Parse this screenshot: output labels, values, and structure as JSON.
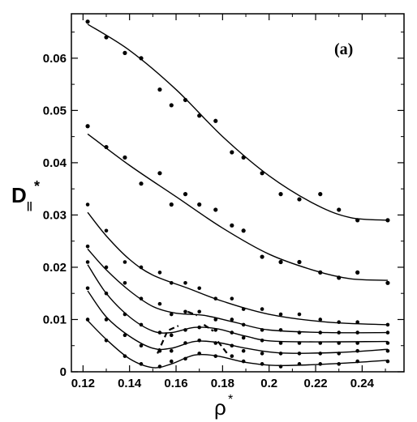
{
  "chart_data": {
    "type": "line",
    "panel_label": "(a)",
    "x_axis": {
      "label": "ρ",
      "superscript": "*",
      "lim": [
        0.115,
        0.258
      ],
      "ticks": [
        "0.12",
        "0.14",
        "0.16",
        "0.18",
        "0.2",
        "0.22",
        "0.24"
      ]
    },
    "y_axis": {
      "label": "D",
      "subscript": "||",
      "superscript": "*",
      "lim": [
        0,
        0.0685
      ],
      "ticks": [
        "0",
        "0.01",
        "0.02",
        "0.03",
        "0.04",
        "0.05",
        "0.06"
      ]
    },
    "grid": false,
    "legend": "none",
    "series": [
      {
        "points": [
          [
            0.122,
            0.067
          ],
          [
            0.13,
            0.064
          ],
          [
            0.138,
            0.061
          ],
          [
            0.145,
            0.06
          ],
          [
            0.153,
            0.054
          ],
          [
            0.158,
            0.051
          ],
          [
            0.164,
            0.052
          ],
          [
            0.17,
            0.049
          ],
          [
            0.177,
            0.048
          ],
          [
            0.184,
            0.042
          ],
          [
            0.189,
            0.041
          ],
          [
            0.197,
            0.038
          ],
          [
            0.205,
            0.034
          ],
          [
            0.213,
            0.033
          ],
          [
            0.222,
            0.034
          ],
          [
            0.23,
            0.031
          ],
          [
            0.238,
            0.029
          ],
          [
            0.251,
            0.029
          ]
        ],
        "curve": [
          [
            0.122,
            0.0665
          ],
          [
            0.14,
            0.0615
          ],
          [
            0.16,
            0.054
          ],
          [
            0.18,
            0.045
          ],
          [
            0.2,
            0.0375
          ],
          [
            0.22,
            0.032
          ],
          [
            0.235,
            0.0295
          ],
          [
            0.251,
            0.029
          ]
        ]
      },
      {
        "points": [
          [
            0.122,
            0.047
          ],
          [
            0.13,
            0.043
          ],
          [
            0.138,
            0.041
          ],
          [
            0.145,
            0.036
          ],
          [
            0.153,
            0.038
          ],
          [
            0.158,
            0.032
          ],
          [
            0.164,
            0.034
          ],
          [
            0.17,
            0.032
          ],
          [
            0.177,
            0.031
          ],
          [
            0.184,
            0.028
          ],
          [
            0.189,
            0.027
          ],
          [
            0.197,
            0.022
          ],
          [
            0.205,
            0.021
          ],
          [
            0.213,
            0.021
          ],
          [
            0.222,
            0.019
          ],
          [
            0.23,
            0.018
          ],
          [
            0.238,
            0.019
          ],
          [
            0.251,
            0.017
          ]
        ],
        "curve": [
          [
            0.122,
            0.0455
          ],
          [
            0.14,
            0.0395
          ],
          [
            0.16,
            0.0335
          ],
          [
            0.18,
            0.0275
          ],
          [
            0.2,
            0.0225
          ],
          [
            0.22,
            0.0193
          ],
          [
            0.235,
            0.0178
          ],
          [
            0.251,
            0.0175
          ]
        ]
      },
      {
        "points": [
          [
            0.122,
            0.032
          ],
          [
            0.13,
            0.027
          ],
          [
            0.138,
            0.021
          ],
          [
            0.145,
            0.02
          ],
          [
            0.153,
            0.019
          ],
          [
            0.158,
            0.017
          ],
          [
            0.164,
            0.017
          ],
          [
            0.17,
            0.016
          ],
          [
            0.177,
            0.014
          ],
          [
            0.184,
            0.014
          ],
          [
            0.189,
            0.012
          ],
          [
            0.197,
            0.012
          ],
          [
            0.205,
            0.011
          ],
          [
            0.213,
            0.011
          ],
          [
            0.222,
            0.01
          ],
          [
            0.23,
            0.0095
          ],
          [
            0.238,
            0.0095
          ],
          [
            0.251,
            0.009
          ]
        ],
        "curve": [
          [
            0.122,
            0.0305
          ],
          [
            0.13,
            0.026
          ],
          [
            0.14,
            0.0215
          ],
          [
            0.15,
            0.0185
          ],
          [
            0.165,
            0.016
          ],
          [
            0.18,
            0.0135
          ],
          [
            0.2,
            0.011
          ],
          [
            0.225,
            0.0095
          ],
          [
            0.251,
            0.009
          ]
        ]
      },
      {
        "points": [
          [
            0.122,
            0.024
          ],
          [
            0.13,
            0.02
          ],
          [
            0.138,
            0.017
          ],
          [
            0.145,
            0.014
          ],
          [
            0.153,
            0.013
          ],
          [
            0.158,
            0.011
          ],
          [
            0.164,
            0.0115
          ],
          [
            0.17,
            0.0115
          ],
          [
            0.177,
            0.01
          ],
          [
            0.184,
            0.01
          ],
          [
            0.189,
            0.009
          ],
          [
            0.197,
            0.008
          ],
          [
            0.205,
            0.008
          ],
          [
            0.213,
            0.0075
          ],
          [
            0.222,
            0.0075
          ],
          [
            0.23,
            0.0075
          ],
          [
            0.238,
            0.0075
          ],
          [
            0.251,
            0.0075
          ]
        ],
        "curve": [
          [
            0.122,
            0.0235
          ],
          [
            0.13,
            0.0195
          ],
          [
            0.14,
            0.0155
          ],
          [
            0.15,
            0.0125
          ],
          [
            0.16,
            0.0112
          ],
          [
            0.172,
            0.0108
          ],
          [
            0.185,
            0.0095
          ],
          [
            0.2,
            0.008
          ],
          [
            0.225,
            0.0075
          ],
          [
            0.251,
            0.0075
          ]
        ]
      },
      {
        "points": [
          [
            0.122,
            0.021
          ],
          [
            0.13,
            0.015
          ],
          [
            0.138,
            0.011
          ],
          [
            0.145,
            0.009
          ],
          [
            0.153,
            0.0075
          ],
          [
            0.158,
            0.007
          ],
          [
            0.164,
            0.008
          ],
          [
            0.17,
            0.0085
          ],
          [
            0.177,
            0.008
          ],
          [
            0.184,
            0.0075
          ],
          [
            0.189,
            0.0065
          ],
          [
            0.197,
            0.006
          ],
          [
            0.205,
            0.0055
          ],
          [
            0.213,
            0.0055
          ],
          [
            0.222,
            0.0055
          ],
          [
            0.23,
            0.0055
          ],
          [
            0.238,
            0.0055
          ],
          [
            0.251,
            0.0055
          ]
        ],
        "curve": [
          [
            0.122,
            0.0205
          ],
          [
            0.13,
            0.015
          ],
          [
            0.14,
            0.0105
          ],
          [
            0.15,
            0.0078
          ],
          [
            0.158,
            0.0075
          ],
          [
            0.168,
            0.0085
          ],
          [
            0.178,
            0.0082
          ],
          [
            0.19,
            0.0068
          ],
          [
            0.205,
            0.0058
          ],
          [
            0.251,
            0.0058
          ]
        ]
      },
      {
        "points": [
          [
            0.122,
            0.016
          ],
          [
            0.13,
            0.01
          ],
          [
            0.138,
            0.007
          ],
          [
            0.145,
            0.005
          ],
          [
            0.153,
            0.004
          ],
          [
            0.158,
            0.004
          ],
          [
            0.164,
            0.0055
          ],
          [
            0.17,
            0.006
          ],
          [
            0.177,
            0.0055
          ],
          [
            0.184,
            0.005
          ],
          [
            0.189,
            0.004
          ],
          [
            0.197,
            0.0035
          ],
          [
            0.205,
            0.0035
          ],
          [
            0.213,
            0.0035
          ],
          [
            0.222,
            0.0035
          ],
          [
            0.23,
            0.0035
          ],
          [
            0.238,
            0.004
          ],
          [
            0.251,
            0.004
          ]
        ],
        "curve": [
          [
            0.122,
            0.0155
          ],
          [
            0.13,
            0.0105
          ],
          [
            0.14,
            0.0068
          ],
          [
            0.15,
            0.0045
          ],
          [
            0.158,
            0.0045
          ],
          [
            0.168,
            0.0058
          ],
          [
            0.178,
            0.0056
          ],
          [
            0.19,
            0.0045
          ],
          [
            0.205,
            0.0036
          ],
          [
            0.23,
            0.0037
          ],
          [
            0.251,
            0.0043
          ]
        ]
      },
      {
        "points": [
          [
            0.122,
            0.01
          ],
          [
            0.13,
            0.006
          ],
          [
            0.138,
            0.003
          ],
          [
            0.145,
            0.0015
          ],
          [
            0.153,
            0.001
          ],
          [
            0.158,
            0.002
          ],
          [
            0.164,
            0.0025
          ],
          [
            0.17,
            0.0035
          ],
          [
            0.177,
            0.003
          ],
          [
            0.184,
            0.003
          ],
          [
            0.189,
            0.002
          ],
          [
            0.197,
            0.0015
          ],
          [
            0.205,
            0.001
          ],
          [
            0.213,
            0.0015
          ],
          [
            0.222,
            0.0015
          ],
          [
            0.23,
            0.0015
          ],
          [
            0.238,
            0.002
          ],
          [
            0.251,
            0.002
          ]
        ],
        "curve": [
          [
            0.122,
            0.0098
          ],
          [
            0.13,
            0.0062
          ],
          [
            0.14,
            0.0025
          ],
          [
            0.15,
            0.0008
          ],
          [
            0.158,
            0.0015
          ],
          [
            0.168,
            0.0032
          ],
          [
            0.178,
            0.003
          ],
          [
            0.19,
            0.0018
          ],
          [
            0.205,
            0.0012
          ],
          [
            0.23,
            0.0016
          ],
          [
            0.251,
            0.0022
          ]
        ]
      }
    ],
    "dashed_marks": [
      [
        [
          0.152,
          0.0035
        ],
        [
          0.156,
          0.0075
        ]
      ],
      [
        [
          0.157,
          0.008
        ],
        [
          0.161,
          0.0088
        ]
      ],
      [
        [
          0.165,
          0.0115
        ],
        [
          0.169,
          0.0108
        ]
      ],
      [
        [
          0.172,
          0.009
        ],
        [
          0.176,
          0.0078
        ]
      ],
      [
        [
          0.178,
          0.0058
        ],
        [
          0.182,
          0.0035
        ]
      ]
    ]
  }
}
